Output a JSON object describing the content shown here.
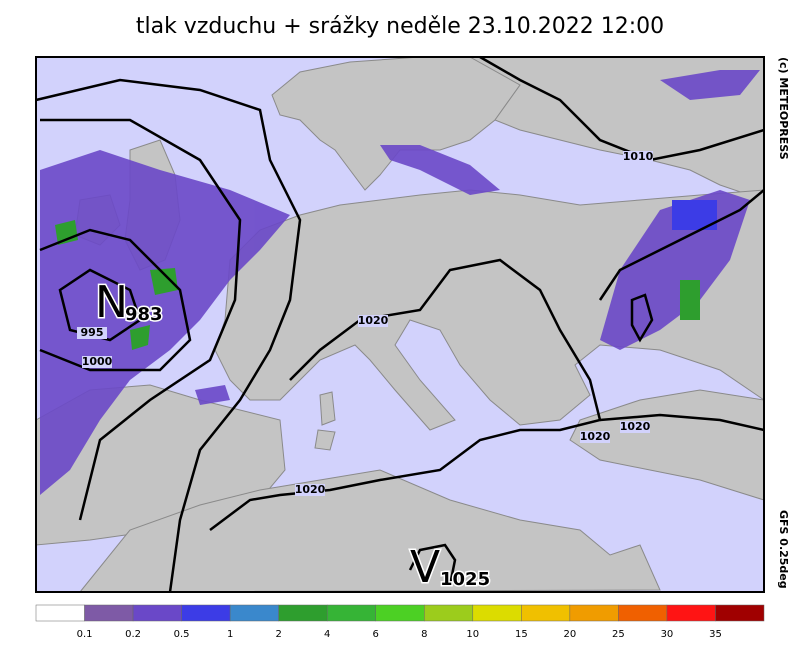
{
  "title": "tlak vzduchu + srážky  neděle 23.10.2022 12:00",
  "copyright": "(c) METEOPRESS",
  "model": "GFS 0.25deg",
  "isobar_labels": [
    1010,
    1020,
    995,
    1000,
    1020,
    1020,
    1020
  ],
  "pressure_centers": [
    {
      "letter": "N",
      "value": 983
    },
    {
      "letter": "V",
      "value": 1025
    }
  ],
  "legend": {
    "ticks": [
      0.1,
      0.2,
      0.5,
      1,
      2,
      4,
      6,
      8,
      10,
      15,
      20,
      25,
      30,
      35
    ],
    "colors": [
      "#ffffff",
      "#7e5aa6",
      "#6a48c8",
      "#3c3ce6",
      "#3a88cc",
      "#2e9e2e",
      "#36b436",
      "#4cd024",
      "#9ccc1c",
      "#dcdc00",
      "#f0c000",
      "#f09c00",
      "#f06000",
      "#ff1414",
      "#a00000"
    ]
  }
}
